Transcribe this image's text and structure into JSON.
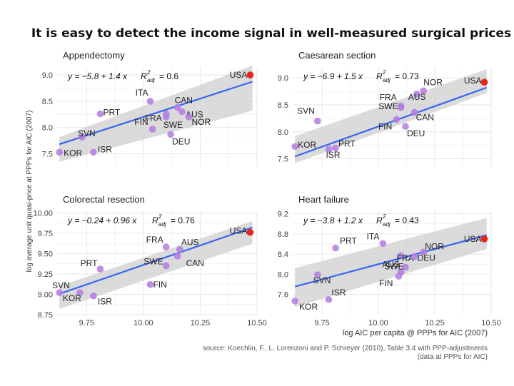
{
  "chart_data": {
    "title": "It is easy to detect the income signal in well-measured surgical prices",
    "xlabel": "log AIC per capita @ PPPs for AIC (2007)",
    "ylabel": "log average unit quasi-price at PPPs for AIC (2007)",
    "source_line1": "source: Koechlin, F., L. Lorenzoni and P. Schreyer (2010), Table 3.4 with PPP-adjustments",
    "source_line2": "(data at PPPs for AIC)",
    "xlim": [
      9.62,
      10.5
    ],
    "xticks": [
      9.75,
      10.0,
      10.25,
      10.5
    ],
    "xtick_labels": [
      "9.75",
      "10.00",
      "10.25",
      "10.50"
    ],
    "colors": {
      "points": "#b27be0",
      "usa": "#e8251a",
      "line": "#3a66f0",
      "band": "#cfcfcf",
      "grid": "#e6e6e6"
    },
    "panels": [
      {
        "type": "scatter",
        "title": "Appendectomy",
        "eq_text": "y = −5.8 + 1.4 x",
        "r2_label": "R",
        "r2_sup": "2",
        "r2_sub": "adj",
        "r2_value": "= 0.6",
        "ylim": [
          7.25,
          9.15
        ],
        "yticks": [
          7.5,
          8.0,
          8.5,
          9.0
        ],
        "ytick_labels": [
          "7.5",
          "8.0",
          "8.5",
          "9.0"
        ],
        "fit": {
          "intercept": -5.8,
          "slope": 1.4,
          "band_lo": [
            7.35,
            8.32
          ],
          "band_hi": [
            7.82,
            9.18
          ]
        },
        "points": [
          {
            "country": "USA",
            "x": 10.47,
            "y": 9.0
          },
          {
            "country": "ITA",
            "x": 10.03,
            "y": 8.5
          },
          {
            "country": "CAN",
            "x": 10.15,
            "y": 8.38
          },
          {
            "country": "FRA",
            "x": 10.1,
            "y": 8.26
          },
          {
            "country": "AUS",
            "x": 10.17,
            "y": 8.3
          },
          {
            "country": "NOR",
            "x": 10.2,
            "y": 8.2
          },
          {
            "country": "PRT",
            "x": 9.81,
            "y": 8.26
          },
          {
            "country": "FIN",
            "x": 10.04,
            "y": 7.97
          },
          {
            "country": "SWE",
            "x": 10.1,
            "y": 8.2
          },
          {
            "country": "DEU",
            "x": 10.12,
            "y": 7.87
          },
          {
            "country": "SVN",
            "x": 9.73,
            "y": 7.82
          },
          {
            "country": "ISR",
            "x": 9.78,
            "y": 7.53
          },
          {
            "country": "KOR",
            "x": 9.63,
            "y": 7.53
          }
        ]
      },
      {
        "type": "scatter",
        "title": "Caesarean section",
        "eq_text": "y = −6.9 + 1.5 x",
        "r2_label": "R",
        "r2_sup": "2",
        "r2_sub": "adj",
        "r2_value": "= 0.73",
        "ylim": [
          7.35,
          9.2
        ],
        "yticks": [
          7.5,
          8.0,
          8.5,
          9.0
        ],
        "ytick_labels": [
          "7.5",
          "8.0",
          "8.5",
          "9.0"
        ],
        "fit": {
          "intercept": -6.9,
          "slope": 1.5,
          "band_lo": [
            7.42,
            8.72
          ],
          "band_hi": [
            7.92,
            9.16
          ]
        },
        "points": [
          {
            "country": "USA",
            "x": 10.47,
            "y": 8.92
          },
          {
            "country": "NOR",
            "x": 10.2,
            "y": 8.76
          },
          {
            "country": "FRA",
            "x": 10.1,
            "y": 8.48
          },
          {
            "country": "AUS",
            "x": 10.17,
            "y": 8.7
          },
          {
            "country": "SWE",
            "x": 10.1,
            "y": 8.45
          },
          {
            "country": "CAN",
            "x": 10.16,
            "y": 8.36
          },
          {
            "country": "FIN",
            "x": 10.08,
            "y": 8.23
          },
          {
            "country": "DEU",
            "x": 10.12,
            "y": 8.1
          },
          {
            "country": "SVN",
            "x": 9.73,
            "y": 8.2
          },
          {
            "country": "PRT",
            "x": 9.81,
            "y": 7.7
          },
          {
            "country": "KOR",
            "x": 9.63,
            "y": 7.73
          },
          {
            "country": "ISR",
            "x": 9.78,
            "y": 7.68
          }
        ]
      },
      {
        "type": "scatter",
        "title": "Colorectal resection",
        "eq_text": "y = −0.24 + 0.96 x",
        "r2_label": "R",
        "r2_sup": "2",
        "r2_sub": "adj",
        "r2_value": "= 0.76",
        "ylim": [
          8.75,
          10.02
        ],
        "yticks": [
          8.75,
          9.0,
          9.25,
          9.5,
          9.75,
          10.0
        ],
        "ytick_labels": [
          "8.75",
          "9.00",
          "9.25",
          "9.50",
          "9.75",
          "10.00"
        ],
        "fit": {
          "intercept": -0.24,
          "slope": 0.96,
          "band_lo": [
            8.82,
            9.62
          ],
          "band_hi": [
            9.1,
            9.9
          ]
        },
        "points": [
          {
            "country": "USA",
            "x": 10.47,
            "y": 9.76
          },
          {
            "country": "FRA",
            "x": 10.1,
            "y": 9.58
          },
          {
            "country": "AUS",
            "x": 10.16,
            "y": 9.55
          },
          {
            "country": "CAN",
            "x": 10.15,
            "y": 9.47
          },
          {
            "country": "SWE",
            "x": 10.1,
            "y": 9.35
          },
          {
            "country": "FIN",
            "x": 10.03,
            "y": 9.12
          },
          {
            "country": "PRT",
            "x": 9.81,
            "y": 9.31
          },
          {
            "country": "SVN",
            "x": 9.63,
            "y": 9.02
          },
          {
            "country": "KOR",
            "x": 9.72,
            "y": 9.02
          },
          {
            "country": "ISR",
            "x": 9.78,
            "y": 8.98
          }
        ]
      },
      {
        "type": "scatter",
        "title": "Heart failure",
        "eq_text": "y = −3.8 + 1.2 x",
        "r2_label": "R",
        "r2_sup": "2",
        "r2_sub": "adj",
        "r2_value": "= 0.43",
        "ylim": [
          7.2,
          9.25
        ],
        "yticks": [
          7.6,
          8.0,
          8.4,
          8.8,
          9.2
        ],
        "ytick_labels": [
          "7.6",
          "8.0",
          "8.4",
          "8.8",
          "9.2"
        ],
        "fit": {
          "intercept": -3.8,
          "slope": 1.2,
          "band_lo": [
            7.35,
            8.5
          ],
          "band_hi": [
            8.12,
            9.12
          ]
        },
        "points": [
          {
            "country": "USA",
            "x": 10.47,
            "y": 8.7
          },
          {
            "country": "ITA",
            "x": 10.02,
            "y": 8.61
          },
          {
            "country": "NOR",
            "x": 10.2,
            "y": 8.44
          },
          {
            "country": "FRA",
            "x": 10.1,
            "y": 8.37
          },
          {
            "country": "PRT",
            "x": 9.81,
            "y": 8.52
          },
          {
            "country": "DEU",
            "x": 10.16,
            "y": 8.35
          },
          {
            "country": "AUS",
            "x": 10.12,
            "y": 8.14
          },
          {
            "country": "SWE",
            "x": 10.1,
            "y": 8.04
          },
          {
            "country": "FIN",
            "x": 10.09,
            "y": 7.96
          },
          {
            "country": "SVN",
            "x": 9.73,
            "y": 7.99
          },
          {
            "country": "ISR",
            "x": 9.78,
            "y": 7.5
          },
          {
            "country": "KOR",
            "x": 9.63,
            "y": 7.47
          }
        ]
      }
    ]
  }
}
